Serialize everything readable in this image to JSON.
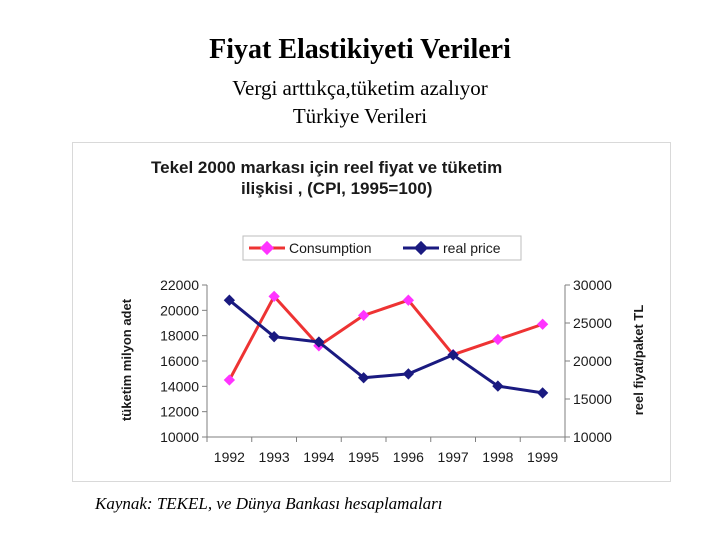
{
  "slide": {
    "title": "Fiyat Elastikiyeti Verileri",
    "subtitle_1": "Vergi arttıkça,tüketim azalıyor",
    "subtitle_2": "Türkiye Verileri",
    "source": "Kaynak: TEKEL, ve Dünya Bankası hesaplamaları"
  },
  "chart_data": {
    "type": "line",
    "title_line1": "Tekel 2000 markası için reel fiyat ve tüketim",
    "title_line2": "ilişkisi , (CPI, 1995=100)",
    "categories": [
      "1992",
      "1993",
      "1994",
      "1995",
      "1996",
      "1997",
      "1998",
      "1999"
    ],
    "series": [
      {
        "name": "Consumption",
        "axis": "left",
        "color": "#ee3333",
        "marker_color": "#ff33ff",
        "values": [
          14500,
          21100,
          17200,
          19600,
          20800,
          16500,
          17700,
          18900
        ]
      },
      {
        "name": "real price",
        "axis": "right",
        "color": "#1a1a80",
        "marker_color": "#1a1a80",
        "values": [
          28000,
          23200,
          22500,
          17800,
          18300,
          20800,
          16700,
          15800
        ]
      }
    ],
    "ylabel_left": "tüketim milyon adet",
    "ylabel_right": "reel fiyat/paket TL",
    "ylim_left": [
      10000,
      22000
    ],
    "yticks_left": [
      "22000",
      "20000",
      "18000",
      "16000",
      "14000",
      "12000",
      "10000"
    ],
    "ylim_right": [
      10000,
      30000
    ],
    "yticks_right": [
      "30000",
      "25000",
      "20000",
      "15000",
      "10000"
    ],
    "legend_position": "top",
    "grid": false
  }
}
